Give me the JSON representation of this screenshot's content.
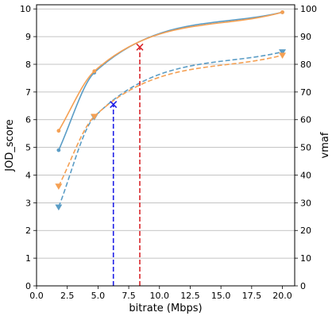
{
  "chart_data": {
    "type": "line",
    "title": "",
    "xlabel": "bitrate (Mbps)",
    "ylabel_left": "JOD_score",
    "ylabel_right": "vmaf",
    "xlim": [
      0,
      21
    ],
    "ylim_left": [
      0,
      10.15
    ],
    "ylim_right": [
      0,
      101.5
    ],
    "x_ticks": [
      0.0,
      2.5,
      5.0,
      7.5,
      10.0,
      12.5,
      15.0,
      17.5,
      20.0
    ],
    "x_tick_labels": [
      "0.0",
      "2.5",
      "5.0",
      "7.5",
      "10.0",
      "12.5",
      "15.0",
      "17.5",
      "20.0"
    ],
    "y_left_ticks": [
      0,
      1,
      2,
      3,
      4,
      5,
      6,
      7,
      8,
      9,
      10
    ],
    "y_left_tick_labels": [
      "0",
      "1",
      "2",
      "3",
      "4",
      "5",
      "6",
      "7",
      "8",
      "9",
      "10"
    ],
    "y_right_ticks": [
      0,
      10,
      20,
      30,
      40,
      50,
      60,
      70,
      80,
      90,
      100
    ],
    "y_right_tick_labels": [
      "0",
      "10",
      "20",
      "30",
      "40",
      "50",
      "60",
      "70",
      "80",
      "90",
      "100"
    ],
    "grid": "horizontal",
    "colors": {
      "blue": "#5b9dc6",
      "orange": "#f5a053",
      "red": "#d9262b",
      "navy": "#1f1fe6"
    },
    "series": [
      {
        "axis": "left",
        "style": "solid",
        "marker": "circle",
        "color": "#5b9dc6",
        "x": [
          1.8,
          4.7,
          20.0
        ],
        "y": [
          4.9,
          7.7,
          9.88
        ]
      },
      {
        "axis": "left",
        "style": "solid",
        "marker": "circle",
        "color": "#f5a053",
        "x": [
          1.8,
          4.7,
          20.0
        ],
        "y": [
          5.6,
          7.75,
          9.88
        ]
      },
      {
        "axis": "right",
        "style": "dashed",
        "marker": "triangle-down",
        "color": "#5b9dc6",
        "x": [
          1.8,
          4.7,
          20.0
        ],
        "y": [
          28.5,
          61.0,
          84.5
        ]
      },
      {
        "axis": "right",
        "style": "dashed",
        "marker": "triangle-down",
        "color": "#f5a053",
        "x": [
          1.8,
          4.7,
          20.0
        ],
        "y": [
          36.0,
          61.2,
          83.3
        ]
      }
    ],
    "markers": [
      {
        "marker": "x",
        "color": "#d9262b",
        "axis": "left",
        "x": 8.4,
        "y": 8.62
      },
      {
        "marker": "x",
        "color": "#1f1fe6",
        "axis": "left",
        "x": 6.25,
        "y": 6.55
      }
    ],
    "vlines": [
      {
        "x": 8.4,
        "axis": "left",
        "ymax": 8.62,
        "color": "#d9262b",
        "style": "dashed"
      },
      {
        "x": 6.25,
        "axis": "left",
        "ymax": 6.55,
        "color": "#1f1fe6",
        "style": "dashed"
      }
    ]
  }
}
